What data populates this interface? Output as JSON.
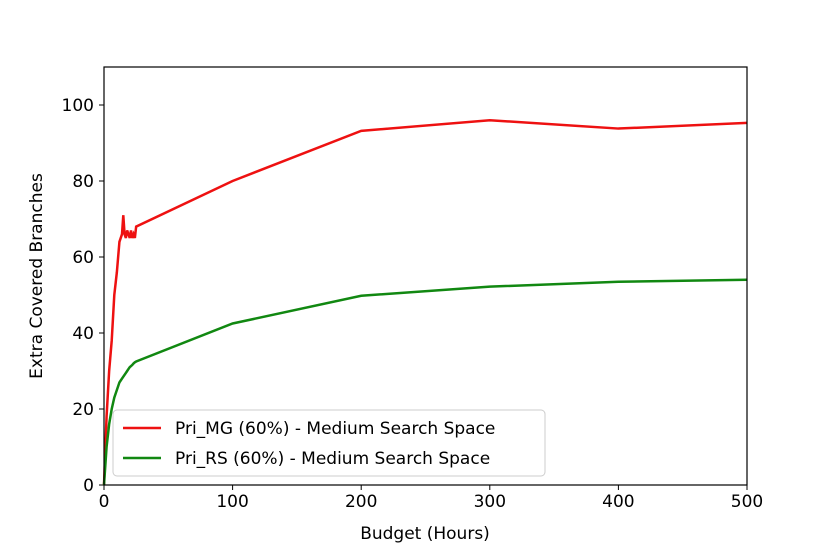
{
  "chart_data": {
    "type": "line",
    "xlabel": "Budget (Hours)",
    "ylabel": "Extra Covered Branches",
    "x": [
      0,
      2,
      4,
      6,
      8,
      10,
      12,
      13,
      14,
      15,
      16,
      17,
      18,
      19,
      20,
      21,
      22,
      23,
      24,
      25,
      100,
      200,
      300,
      400,
      500
    ],
    "series": [
      {
        "name": "Pri_MG (60%) - Medium Search Space",
        "color": "#ee1111",
        "values": [
          0,
          18,
          30,
          38,
          50,
          56,
          64,
          65,
          66,
          71,
          66,
          65,
          67,
          66,
          65,
          67,
          65,
          66,
          65,
          68,
          80,
          93.2,
          96,
          93.8,
          95.3
        ]
      },
      {
        "name": "Pri_RS (60%) - Medium Search Space",
        "color": "#118811",
        "values": [
          0,
          10,
          16,
          20,
          23,
          25,
          27,
          27.5,
          28,
          28.5,
          29,
          29.5,
          30,
          30.5,
          31,
          31.3,
          31.6,
          32,
          32.3,
          32.5,
          42.5,
          49.8,
          52.2,
          53.5,
          54
        ]
      }
    ],
    "xlim": [
      0,
      500
    ],
    "xticks": [
      0,
      100,
      200,
      300,
      400,
      500
    ],
    "ylim": [
      0,
      110
    ],
    "yticks": [
      0,
      20,
      40,
      60,
      80,
      100
    ],
    "legend": "lower left"
  }
}
